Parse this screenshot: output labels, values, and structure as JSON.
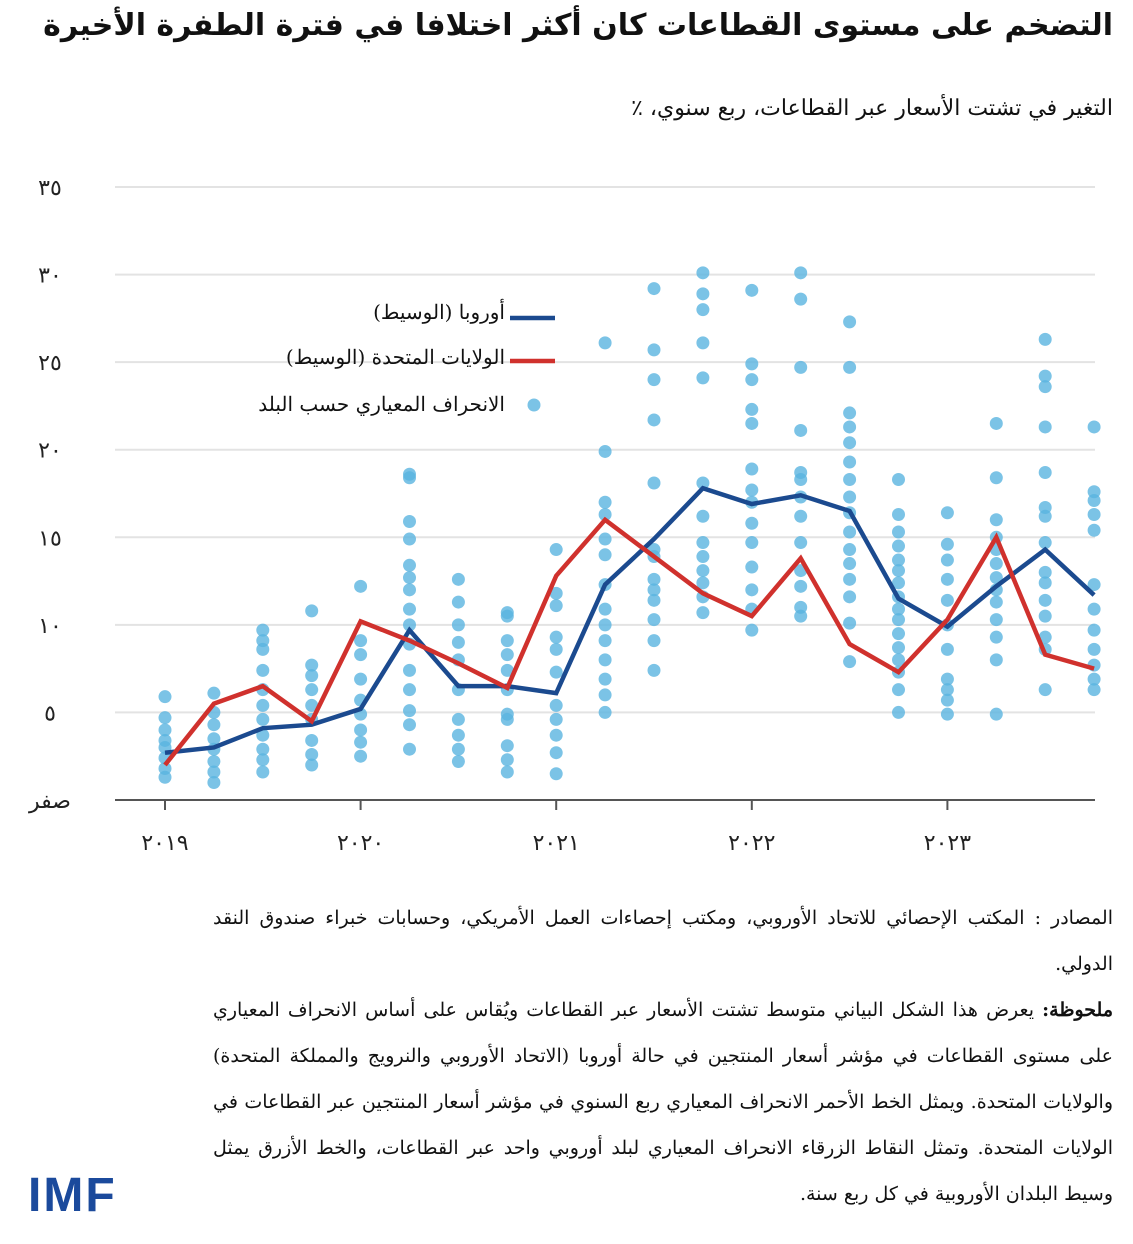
{
  "title": "التضخم على مستوى القطاعات كان أكثر اختلافا في فترة الطفرة الأخيرة",
  "subtitle": "التغير في تشتت الأسعار عبر القطاعات، ربع سنوي، ٪",
  "chart_data": {
    "type": "line",
    "title": "التضخم على مستوى القطاعات كان أكثر اختلافا في فترة الطفرة الأخيرة",
    "subtitle": "التغير في تشتت الأسعار عبر القطاعات، ربع سنوي، ٪",
    "x": [
      "2019Q1",
      "2019Q2",
      "2019Q3",
      "2019Q4",
      "2020Q1",
      "2020Q2",
      "2020Q3",
      "2020Q4",
      "2021Q1",
      "2021Q2",
      "2021Q3",
      "2021Q4",
      "2022Q1",
      "2022Q2",
      "2022Q3",
      "2022Q4",
      "2023Q1",
      "2023Q2",
      "2023Q3",
      "2023Q4"
    ],
    "x_tick_labels": [
      "٢٠١٩",
      "٢٠٢٠",
      "٢٠٢١",
      "٢٠٢٢",
      "٢٠٢٣"
    ],
    "y_tick_labels": [
      "صفر",
      "٥",
      "١٠",
      "١٥",
      "٢٠",
      "٢٥",
      "٣٠",
      "٣٥"
    ],
    "y_ticks": [
      0,
      5,
      10,
      15,
      20,
      25,
      30,
      35
    ],
    "ylim": [
      0,
      35
    ],
    "grid": true,
    "legend_placement": "top-left",
    "series": [
      {
        "name": "أوروبا (الوسيط)",
        "kind": "line",
        "color": "#1b4a8f",
        "values": [
          2.7,
          3.0,
          4.1,
          4.3,
          5.2,
          9.7,
          6.5,
          6.5,
          6.1,
          12.3,
          14.9,
          17.8,
          16.9,
          17.4,
          16.5,
          11.5,
          9.9,
          12.2,
          14.3,
          11.7
        ]
      },
      {
        "name": "الولايات المتحدة (الوسيط)",
        "kind": "line",
        "color": "#d0312d",
        "values": [
          2.0,
          5.5,
          6.5,
          4.5,
          10.2,
          9.1,
          7.8,
          6.4,
          12.8,
          16.0,
          13.9,
          11.8,
          10.5,
          13.8,
          8.9,
          7.3,
          10.3,
          15.0,
          8.3,
          7.5
        ]
      },
      {
        "name": "الانحراف المعياري حسب البلد",
        "kind": "scatter",
        "color": "#5ab4e0",
        "points": [
          [
            5.9,
            4.7,
            4.0,
            3.4,
            3.0,
            2.4,
            1.8,
            1.3
          ],
          [
            6.1,
            5.0,
            4.3,
            3.5,
            2.9,
            2.2,
            1.6,
            1.0
          ],
          [
            9.7,
            9.1,
            8.6,
            7.4,
            6.3,
            5.4,
            4.6,
            3.7,
            2.9,
            2.3,
            1.6
          ],
          [
            10.8,
            7.7,
            7.1,
            6.3,
            5.4,
            4.6,
            3.4,
            2.6,
            2.0
          ],
          [
            12.2,
            9.1,
            8.3,
            6.9,
            5.7,
            4.9,
            4.0,
            3.3,
            2.5
          ],
          [
            18.6,
            18.4,
            15.9,
            14.9,
            13.4,
            12.7,
            12.0,
            10.9,
            10.0,
            8.9,
            7.4,
            6.3,
            5.1,
            4.3,
            2.9
          ],
          [
            12.6,
            11.3,
            10.0,
            9.0,
            8.0,
            6.3,
            4.6,
            3.7,
            2.9,
            2.2
          ],
          [
            10.7,
            10.5,
            9.1,
            8.3,
            7.4,
            6.3,
            4.9,
            4.6,
            3.1,
            2.3,
            1.6
          ],
          [
            14.3,
            11.8,
            11.1,
            9.3,
            8.6,
            7.3,
            5.4,
            4.6,
            3.7,
            2.7,
            1.5
          ],
          [
            26.1,
            19.9,
            17.0,
            16.3,
            14.9,
            14.0,
            12.3,
            10.9,
            10.0,
            9.1,
            8.0,
            6.9,
            6.0,
            5.0
          ],
          [
            29.2,
            25.7,
            24.0,
            21.7,
            18.1,
            14.3,
            13.9,
            12.6,
            12.0,
            11.4,
            10.3,
            9.1,
            7.4
          ],
          [
            30.1,
            28.9,
            28.0,
            26.1,
            24.1,
            18.1,
            16.2,
            14.7,
            13.9,
            13.1,
            12.4,
            11.6,
            10.7
          ],
          [
            29.1,
            24.9,
            24.0,
            22.3,
            21.5,
            18.9,
            17.7,
            17.0,
            15.8,
            14.7,
            13.3,
            12.0,
            10.9,
            9.7
          ],
          [
            30.1,
            28.6,
            24.7,
            21.1,
            18.7,
            18.3,
            17.3,
            16.2,
            14.7,
            13.1,
            12.2,
            11.0,
            10.5
          ],
          [
            27.3,
            24.7,
            22.1,
            21.3,
            20.4,
            19.3,
            18.3,
            17.3,
            16.4,
            15.3,
            14.3,
            13.5,
            12.6,
            11.6,
            10.1,
            7.9
          ],
          [
            18.3,
            16.3,
            15.3,
            14.5,
            13.7,
            13.1,
            12.4,
            11.6,
            10.9,
            10.3,
            9.5,
            8.7,
            8.0,
            7.3,
            6.3,
            5.0
          ],
          [
            16.4,
            14.6,
            13.7,
            12.6,
            11.4,
            10.0,
            8.6,
            6.9,
            6.3,
            5.7,
            4.9
          ],
          [
            21.5,
            18.4,
            16.0,
            15.0,
            14.3,
            13.5,
            12.7,
            12.0,
            11.3,
            10.3,
            9.3,
            8.0,
            4.9
          ],
          [
            26.3,
            24.2,
            23.6,
            21.3,
            18.7,
            16.7,
            16.2,
            14.7,
            13.0,
            12.4,
            11.4,
            10.5,
            9.3,
            8.6,
            6.3
          ],
          [
            21.3,
            17.6,
            17.1,
            16.3,
            15.4,
            12.3,
            10.9,
            9.7,
            8.6,
            7.7,
            6.9,
            6.3
          ]
        ]
      }
    ]
  },
  "legend": {
    "europe": "أوروبا (الوسيط)",
    "us": "الولايات المتحدة (الوسيط)",
    "dots": "الانحراف المعياري حسب البلد"
  },
  "notes": {
    "sources": "المصادر : المكتب الإحصائي للاتحاد الأوروبي، ومكتب إحصاءات العمل الأمريكي، وحسابات خبراء صندوق النقد الدولي.",
    "note_label": "ملحوظة:",
    "note_text": " يعرض هذا الشكل البياني متوسط تشتت الأسعار عبر القطاعات ويُقاس على أساس الانحراف المعياري على مستوى القطاعات في مؤشر أسعار المنتجين في حالة أوروبا (الاتحاد الأوروبي والنرويج والمملكة المتحدة) والولايات المتحدة. ويمثل الخط الأحمر الانحراف المعياري ربع السنوي في مؤشر أسعار المنتجين عبر القطاعات في الولايات المتحدة. وتمثل النقاط الزرقاء الانحراف المعياري لبلد أوروبي واحد عبر القطاعات، والخط الأزرق يمثل وسيط البلدان الأوروبية في كل ربع سنة."
  },
  "logo": "IMF"
}
